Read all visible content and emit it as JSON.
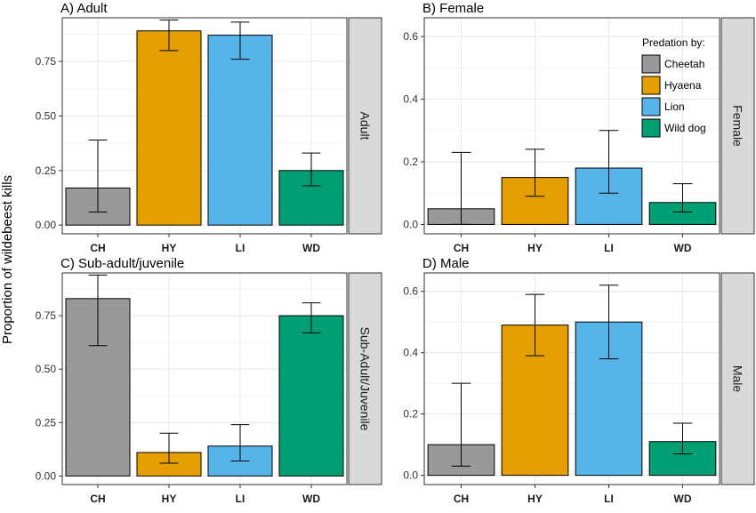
{
  "chart_data": {
    "type": "bar",
    "ylabel": "Proportion of wildebeest kills",
    "categories": [
      "CH",
      "HY",
      "LI",
      "WD"
    ],
    "colors": [
      "#999999",
      "#E69F00",
      "#56B4E9",
      "#009E73"
    ],
    "legend": {
      "title": "Predation by:",
      "entries": [
        "Cheetah",
        "Hyaena",
        "Lion",
        "Wild dog"
      ],
      "placement": "top-right"
    },
    "grid": true,
    "panels": [
      {
        "title": "A) Adult",
        "strip": "Adult",
        "ylim": [
          -0.04,
          0.95
        ],
        "yticks": [
          0,
          0.25,
          0.5,
          0.75
        ],
        "yticklabels": [
          "0.00",
          "0.25",
          "0.50",
          "0.75"
        ],
        "values": [
          0.17,
          0.89,
          0.87,
          0.25
        ],
        "err_low": [
          0.06,
          0.8,
          0.76,
          0.18
        ],
        "err_high": [
          0.39,
          0.94,
          0.93,
          0.33
        ]
      },
      {
        "title": "B) Female",
        "strip": "Female",
        "ylim": [
          -0.03,
          0.66
        ],
        "yticks": [
          0,
          0.2,
          0.4,
          0.6
        ],
        "yticklabels": [
          "0.0",
          "0.2",
          "0.4",
          "0.6"
        ],
        "values": [
          0.05,
          0.15,
          0.18,
          0.07
        ],
        "err_low": [
          0.0,
          0.09,
          0.1,
          0.04
        ],
        "err_high": [
          0.23,
          0.24,
          0.3,
          0.13
        ]
      },
      {
        "title": "C) Sub-adult/juvenile",
        "strip": "Sub-Adult/Juvenile",
        "ylim": [
          -0.04,
          0.95
        ],
        "yticks": [
          0,
          0.25,
          0.5,
          0.75
        ],
        "yticklabels": [
          "0.00",
          "0.25",
          "0.50",
          "0.75"
        ],
        "values": [
          0.83,
          0.11,
          0.14,
          0.75
        ],
        "err_low": [
          0.61,
          0.06,
          0.07,
          0.67
        ],
        "err_high": [
          0.94,
          0.2,
          0.24,
          0.81
        ]
      },
      {
        "title": "D) Male",
        "strip": "Male",
        "ylim": [
          -0.03,
          0.66
        ],
        "yticks": [
          0,
          0.2,
          0.4,
          0.6
        ],
        "yticklabels": [
          "0.0",
          "0.2",
          "0.4",
          "0.6"
        ],
        "values": [
          0.1,
          0.49,
          0.5,
          0.11
        ],
        "err_low": [
          0.03,
          0.39,
          0.38,
          0.07
        ],
        "err_high": [
          0.3,
          0.59,
          0.62,
          0.17
        ]
      }
    ]
  }
}
